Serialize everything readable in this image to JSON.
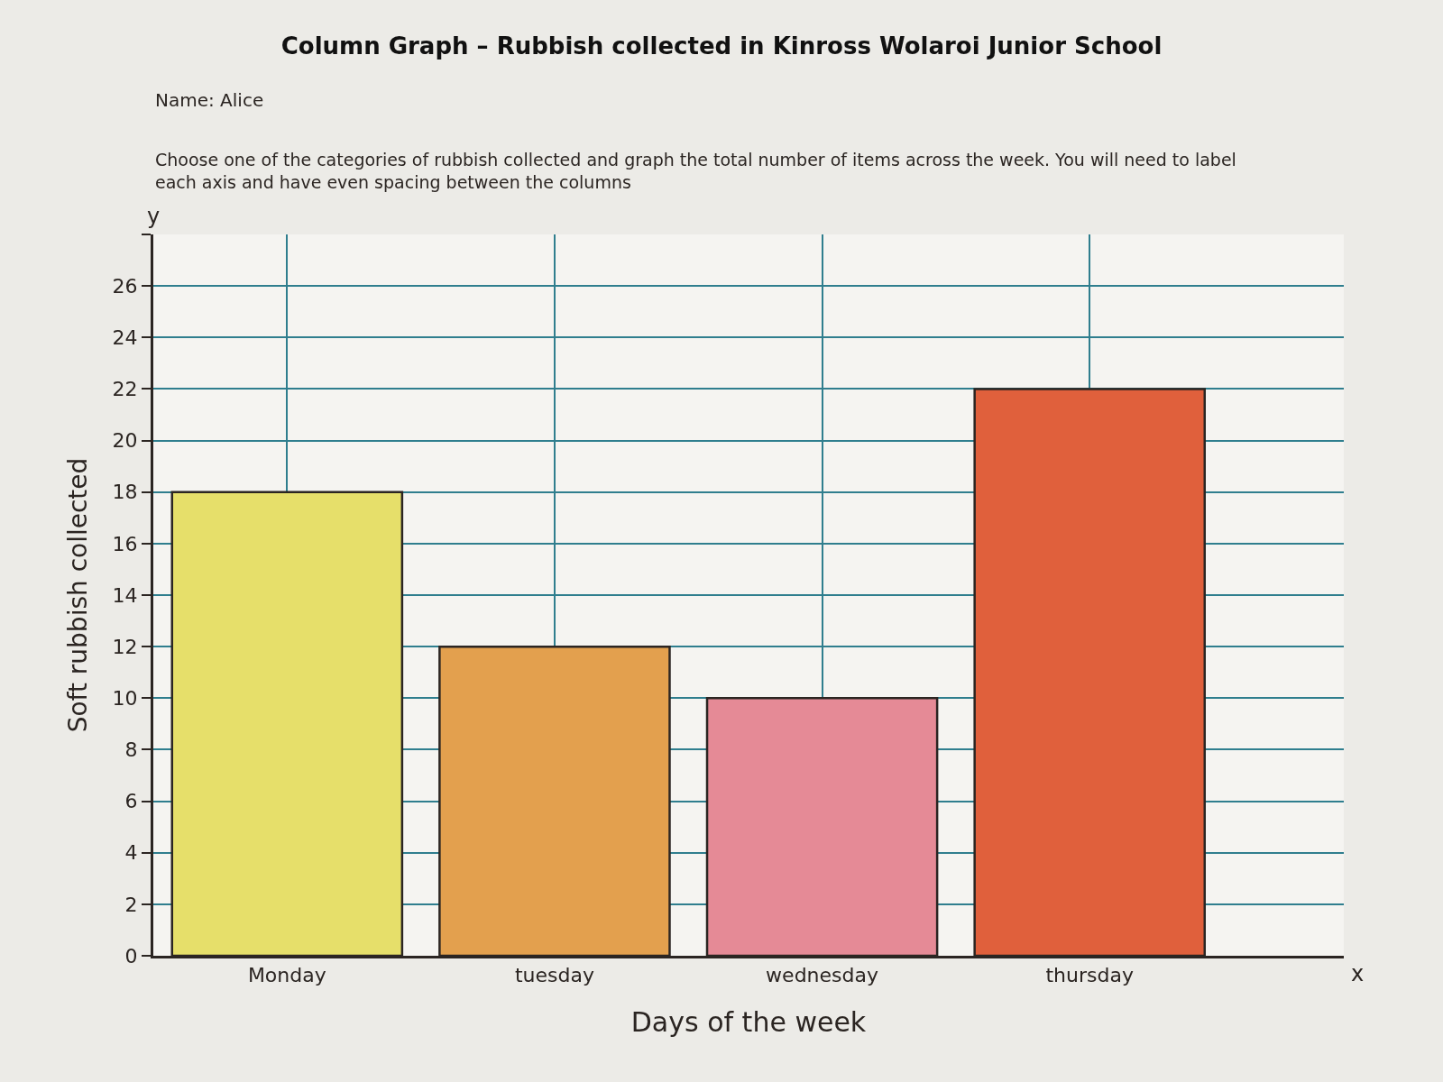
{
  "chart_data": {
    "type": "bar",
    "title": "Column Graph – Rubbish collected in Kinross Wolaroi Junior School",
    "xlabel": "Days of the week",
    "ylabel": "Soft rubbish collected",
    "annotations": [
      "Name: Alice",
      "Choose one of the categories of rubbish collected and graph the total number of items across the week. You will need to label each axis and have even spacing between the columns",
      "y",
      "x"
    ],
    "categories": [
      "Monday",
      "tuesday",
      "wednesday",
      "thursday"
    ],
    "values": [
      18,
      12,
      10,
      22
    ],
    "colors": [
      "#e6df6a",
      "#e3a04e",
      "#e58a96",
      "#e0603c"
    ],
    "ylim": [
      0,
      28
    ],
    "yticks": [
      0,
      2,
      4,
      6,
      8,
      10,
      12,
      14,
      16,
      18,
      20,
      22,
      24,
      26,
      {
        "value": 28,
        "label": null
      }
    ],
    "grid": true
  }
}
